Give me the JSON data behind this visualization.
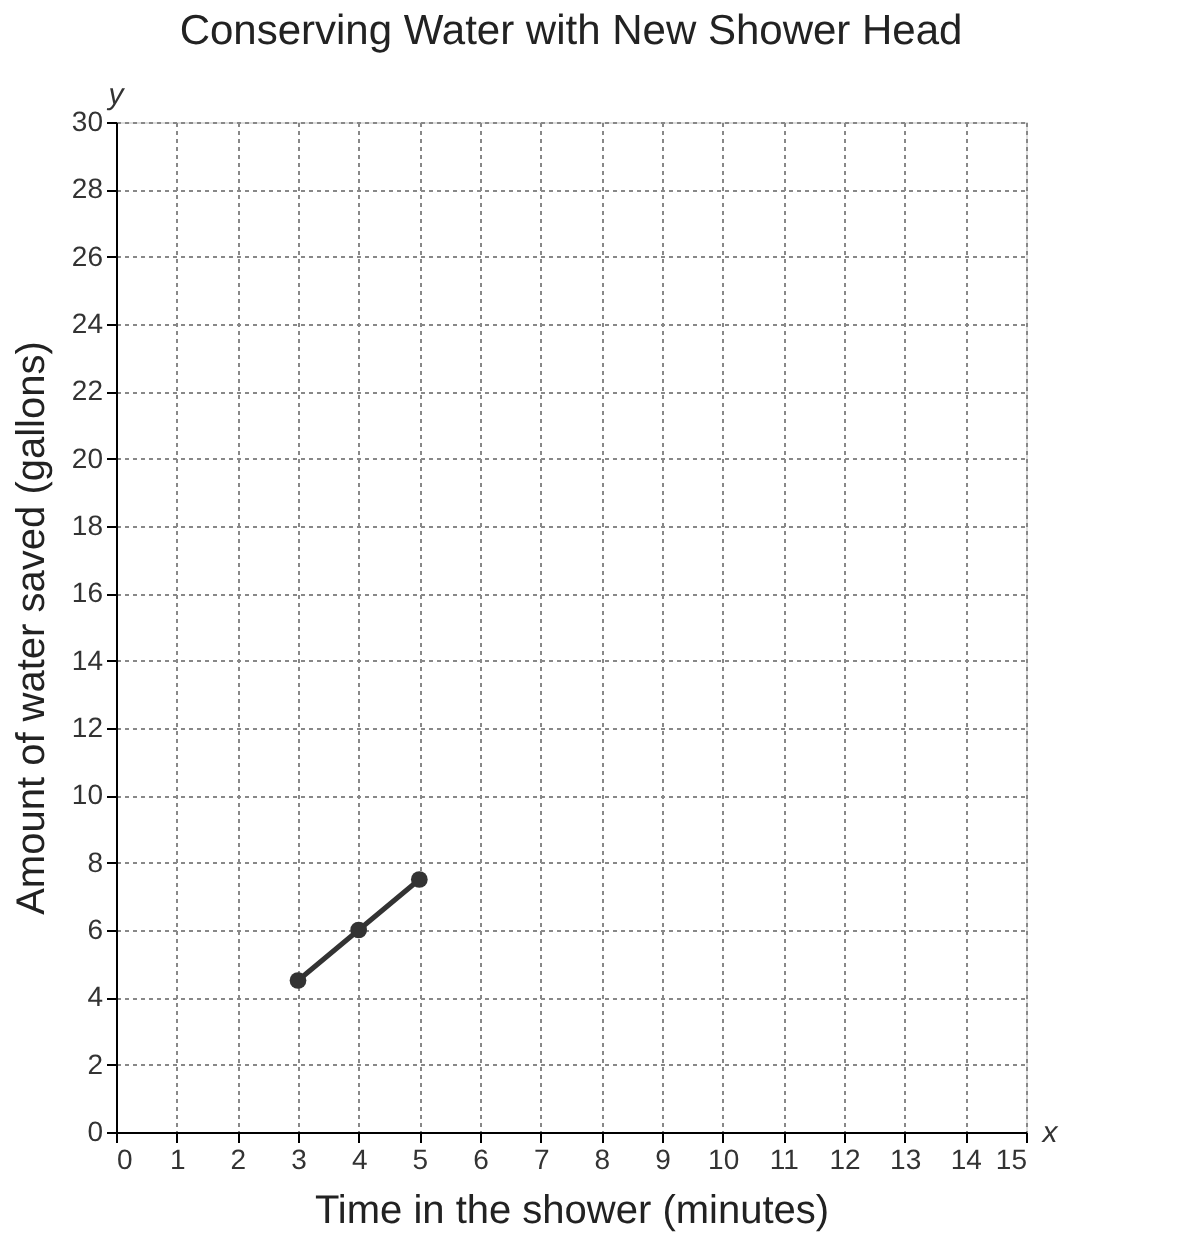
{
  "chart_data": {
    "type": "line",
    "title": "Conserving Water with New Shower Head",
    "xlabel": "Time in the shower (minutes)",
    "ylabel": "Amount of water saved (gallons)",
    "x": [
      3,
      4,
      5
    ],
    "series": [
      {
        "color": "#333333",
        "values": [
          4.5,
          6,
          7.5
        ]
      }
    ],
    "xlim": [
      0,
      15
    ],
    "xticks": [
      0,
      1,
      2,
      3,
      4,
      5,
      6,
      7,
      8,
      9,
      10,
      11,
      12,
      13,
      14,
      15
    ],
    "ylim": [
      0,
      30
    ],
    "yticks": [
      0,
      2,
      4,
      6,
      8,
      10,
      12,
      14,
      16,
      18,
      20,
      22,
      24,
      26,
      28,
      30
    ],
    "grid": true,
    "marker": "circle",
    "line_style": "solid",
    "annotations": [
      "y",
      "x"
    ]
  }
}
